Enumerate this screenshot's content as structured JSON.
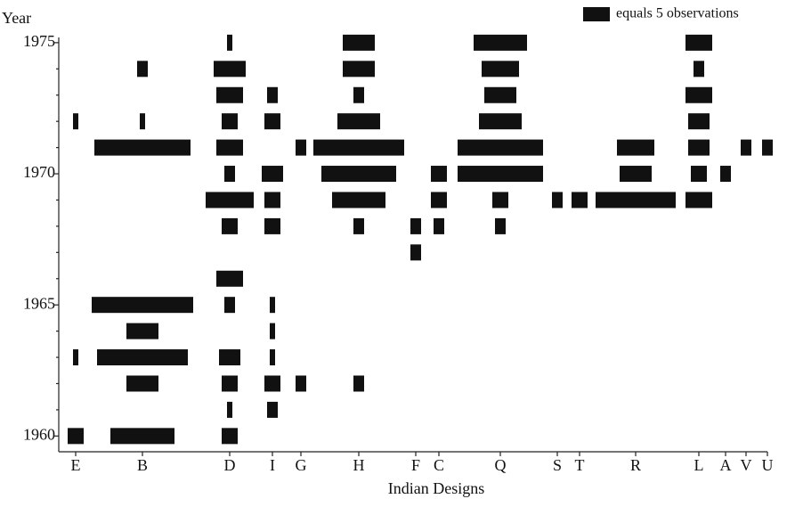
{
  "chart_data": {
    "type": "battleship",
    "y_label": "Year",
    "x_label": "Indian Designs",
    "legend": {
      "label": "equals 5 observations",
      "count": 5
    },
    "color": "#111111",
    "ylim": [
      1959.4,
      1975.2
    ],
    "yticks": [
      1960,
      1965,
      1970,
      1975
    ],
    "minor_yticks": [
      1961,
      1962,
      1963,
      1964,
      1966,
      1967,
      1968,
      1969,
      1971,
      1972,
      1973,
      1974
    ],
    "categories": [
      "E",
      "B",
      "D",
      "I",
      "G",
      "H",
      "F",
      "C",
      "Q",
      "S",
      "T",
      "R",
      "L",
      "A",
      "V",
      "U"
    ],
    "columns": [
      {
        "years": [
          1972,
          1963,
          1960
        ],
        "counts": [
          1,
          1,
          3
        ]
      },
      {
        "years": [
          1974,
          1972,
          1971,
          1965,
          1964,
          1963,
          1962,
          1960
        ],
        "counts": [
          2,
          1,
          18,
          19,
          6,
          17,
          6,
          12
        ]
      },
      {
        "years": [
          1975,
          1974,
          1973,
          1972,
          1971,
          1970,
          1969,
          1968,
          1966,
          1965,
          1963,
          1962,
          1961,
          1960
        ],
        "counts": [
          1,
          6,
          5,
          3,
          5,
          2,
          9,
          3,
          5,
          2,
          4,
          3,
          1,
          3
        ]
      },
      {
        "years": [
          1973,
          1972,
          1970,
          1969,
          1968,
          1965,
          1964,
          1963,
          1962,
          1961
        ],
        "counts": [
          2,
          3,
          4,
          3,
          3,
          1,
          1,
          1,
          3,
          2
        ]
      },
      {
        "years": [
          1971,
          1962
        ],
        "counts": [
          2,
          2
        ]
      },
      {
        "years": [
          1975,
          1974,
          1973,
          1972,
          1971,
          1970,
          1969,
          1968,
          1962
        ],
        "counts": [
          6,
          6,
          2,
          8,
          17,
          14,
          10,
          2,
          2
        ]
      },
      {
        "years": [
          1968,
          1967
        ],
        "counts": [
          2,
          2
        ]
      },
      {
        "years": [
          1970,
          1969,
          1968
        ],
        "counts": [
          3,
          3,
          2
        ]
      },
      {
        "years": [
          1975,
          1974,
          1973,
          1972,
          1971,
          1970,
          1969,
          1968
        ],
        "counts": [
          10,
          7,
          6,
          8,
          16,
          16,
          3,
          2
        ]
      },
      {
        "years": [
          1969
        ],
        "counts": [
          2
        ]
      },
      {
        "years": [
          1969
        ],
        "counts": [
          3
        ]
      },
      {
        "years": [
          1971,
          1970,
          1969
        ],
        "counts": [
          7,
          6,
          15
        ]
      },
      {
        "years": [
          1975,
          1974,
          1973,
          1972,
          1971,
          1970,
          1969
        ],
        "counts": [
          5,
          2,
          5,
          4,
          4,
          3,
          5
        ]
      },
      {
        "years": [
          1970
        ],
        "counts": [
          2
        ]
      },
      {
        "years": [
          1971
        ],
        "counts": [
          2
        ]
      },
      {
        "years": [
          1971
        ],
        "counts": [
          2
        ]
      }
    ]
  }
}
